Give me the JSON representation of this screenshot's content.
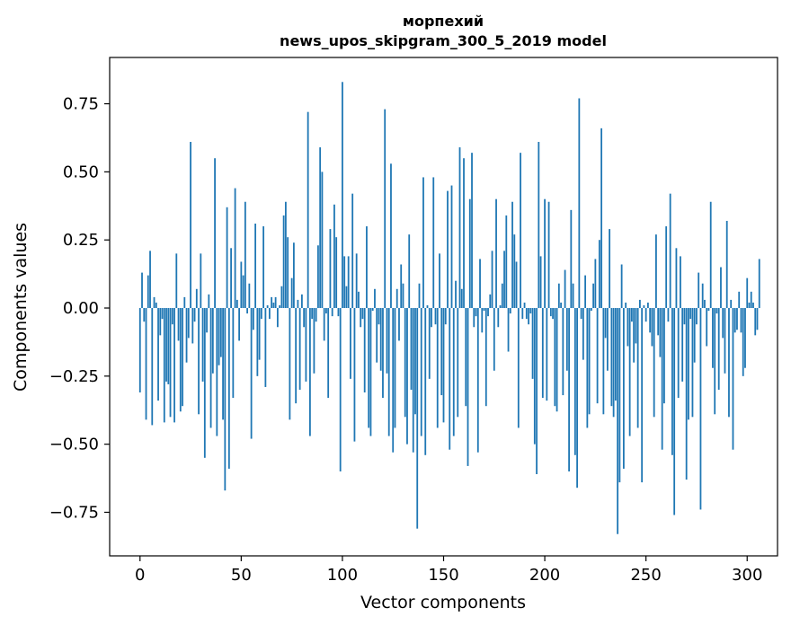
{
  "chart_data": {
    "type": "bar",
    "title": "морпехий",
    "subtitle": "news_upos_skipgram_300_5_2019 model",
    "xlabel": "Vector components",
    "ylabel": "Components values",
    "xlim": [
      -15,
      315
    ],
    "ylim": [
      -0.91,
      0.92
    ],
    "xticks": [
      0,
      50,
      100,
      150,
      200,
      250,
      300
    ],
    "xtick_labels": [
      "0",
      "50",
      "100",
      "150",
      "200",
      "250",
      "300"
    ],
    "yticks": [
      0.75,
      0.5,
      0.25,
      0.0,
      -0.25,
      -0.5,
      -0.75
    ],
    "ytick_labels": [
      "0.75",
      "0.50",
      "0.25",
      "0.00",
      "−0.25",
      "−0.50",
      "−0.75"
    ],
    "bar_color": "#1f77b4",
    "grid": false,
    "values": [
      -0.31,
      0.13,
      -0.05,
      -0.41,
      0.12,
      0.21,
      -0.43,
      0.04,
      0.02,
      -0.34,
      -0.1,
      -0.04,
      -0.42,
      -0.27,
      -0.28,
      -0.4,
      -0.06,
      -0.42,
      0.2,
      -0.12,
      -0.38,
      -0.36,
      0.04,
      -0.2,
      -0.11,
      0.61,
      -0.13,
      -0.05,
      0.07,
      -0.39,
      0.2,
      -0.27,
      -0.55,
      -0.09,
      0.05,
      -0.44,
      -0.24,
      0.55,
      -0.47,
      -0.21,
      -0.18,
      -0.41,
      -0.67,
      0.37,
      -0.59,
      0.22,
      -0.33,
      0.44,
      0.03,
      -0.12,
      0.17,
      0.12,
      0.39,
      -0.02,
      0.09,
      -0.48,
      -0.08,
      0.31,
      -0.25,
      -0.19,
      -0.04,
      0.3,
      -0.29,
      0.01,
      -0.04,
      0.04,
      0.02,
      0.04,
      -0.07,
      0.01,
      0.08,
      0.34,
      0.39,
      0.26,
      -0.41,
      0.11,
      0.24,
      -0.35,
      0.03,
      -0.3,
      0.05,
      -0.07,
      -0.27,
      0.72,
      -0.47,
      -0.04,
      -0.24,
      -0.05,
      0.23,
      0.59,
      0.5,
      -0.12,
      -0.02,
      -0.33,
      0.29,
      -0.03,
      0.38,
      0.26,
      -0.03,
      -0.6,
      0.83,
      0.19,
      0.08,
      0.19,
      -0.26,
      0.42,
      -0.49,
      0.2,
      0.06,
      -0.07,
      -0.04,
      -0.31,
      0.3,
      -0.44,
      -0.47,
      -0.01,
      0.07,
      -0.2,
      -0.06,
      -0.23,
      -0.33,
      0.73,
      -0.24,
      -0.47,
      0.53,
      -0.53,
      -0.44,
      0.07,
      -0.12,
      0.16,
      0.09,
      -0.4,
      -0.5,
      0.27,
      -0.3,
      -0.53,
      -0.39,
      -0.81,
      0.09,
      -0.47,
      0.48,
      -0.54,
      0.01,
      -0.26,
      -0.07,
      0.48,
      -0.06,
      -0.44,
      0.2,
      -0.32,
      -0.42,
      -0.06,
      0.43,
      -0.52,
      0.45,
      -0.47,
      0.1,
      -0.4,
      0.59,
      0.07,
      0.55,
      -0.36,
      -0.58,
      0.4,
      0.57,
      -0.07,
      -0.03,
      -0.53,
      0.18,
      -0.09,
      -0.01,
      -0.36,
      -0.03,
      0.05,
      0.21,
      -0.23,
      0.4,
      -0.07,
      0.01,
      0.09,
      0.21,
      0.34,
      -0.16,
      -0.02,
      0.39,
      0.27,
      0.17,
      -0.44,
      0.57,
      -0.04,
      0.02,
      -0.04,
      -0.06,
      -0.02,
      -0.26,
      -0.5,
      -0.61,
      0.61,
      0.19,
      -0.33,
      0.4,
      -0.34,
      0.39,
      -0.03,
      -0.04,
      -0.36,
      -0.38,
      0.09,
      0.02,
      -0.32,
      0.14,
      -0.23,
      -0.6,
      0.36,
      0.09,
      -0.54,
      -0.66,
      0.77,
      -0.04,
      -0.19,
      0.12,
      -0.44,
      -0.39,
      -0.01,
      0.09,
      0.18,
      -0.35,
      0.25,
      0.66,
      -0.39,
      -0.11,
      -0.23,
      0.29,
      -0.36,
      -0.4,
      -0.34,
      -0.83,
      -0.64,
      0.16,
      -0.59,
      0.02,
      -0.14,
      -0.47,
      -0.05,
      -0.2,
      -0.13,
      -0.44,
      0.03,
      -0.64,
      0.01,
      -0.05,
      0.02,
      -0.09,
      -0.14,
      -0.4,
      0.27,
      -0.1,
      -0.18,
      -0.52,
      -0.35,
      0.3,
      -0.05,
      0.42,
      -0.54,
      -0.76,
      0.22,
      -0.33,
      0.19,
      -0.27,
      -0.06,
      -0.63,
      -0.41,
      -0.04,
      -0.4,
      -0.2,
      -0.06,
      0.13,
      -0.74,
      0.09,
      0.03,
      -0.14,
      -0.01,
      0.39,
      -0.22,
      -0.39,
      -0.02,
      -0.3,
      0.15,
      -0.11,
      -0.24,
      0.32,
      -0.4,
      0.03,
      -0.52,
      -0.09,
      -0.08,
      0.06,
      -0.09,
      -0.25,
      -0.22,
      0.11,
      0.02,
      0.06,
      0.02,
      -0.1,
      -0.08,
      0.18
    ]
  }
}
